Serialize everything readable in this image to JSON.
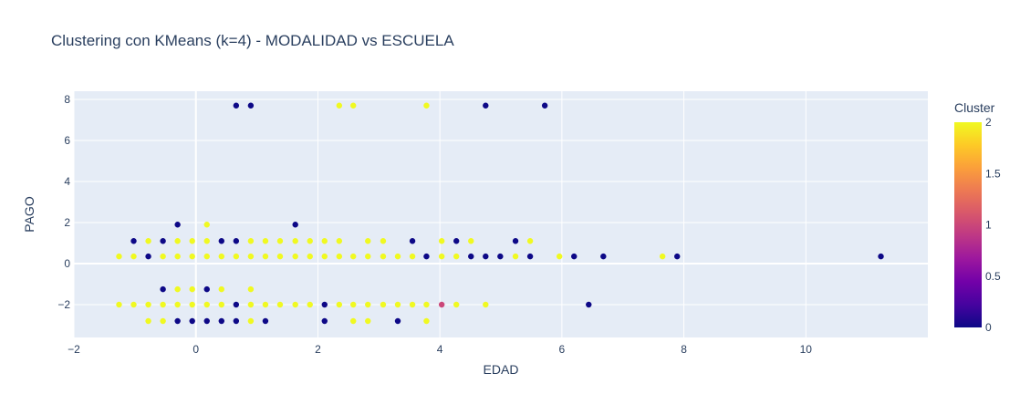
{
  "chart_data": {
    "type": "scatter",
    "title": "Clustering con KMeans (k=4) - MODALIDAD vs ESCUELA",
    "xlabel": "EDAD",
    "ylabel": "PAGO",
    "xlim": [
      -2,
      12
    ],
    "ylim": [
      -3.6,
      8.4
    ],
    "x_ticks": [
      -2,
      0,
      2,
      4,
      6,
      8,
      10
    ],
    "y_ticks": [
      -2,
      0,
      2,
      4,
      6,
      8
    ],
    "grid": true,
    "colorbar": {
      "title": "Cluster",
      "min": 0,
      "max": 2,
      "ticks": [
        0,
        0.5,
        1,
        1.5,
        2
      ],
      "colors": [
        "#0d0887",
        "#46039f",
        "#7201a8",
        "#9c179e",
        "#bd3786",
        "#d8576b",
        "#ed7953",
        "#fb9f3a",
        "#fdca26",
        "#f0f921"
      ]
    },
    "points": [
      {
        "x": 0.66,
        "y": 7.7,
        "c": 0
      },
      {
        "x": 0.9,
        "y": 7.7,
        "c": 0
      },
      {
        "x": 2.35,
        "y": 7.7,
        "c": 2
      },
      {
        "x": 2.58,
        "y": 7.7,
        "c": 2
      },
      {
        "x": 3.78,
        "y": 7.7,
        "c": 2
      },
      {
        "x": 4.75,
        "y": 7.7,
        "c": 0
      },
      {
        "x": 5.72,
        "y": 7.7,
        "c": 0
      },
      {
        "x": -0.3,
        "y": 1.9,
        "c": 0
      },
      {
        "x": 0.18,
        "y": 1.9,
        "c": 2
      },
      {
        "x": 1.63,
        "y": 1.9,
        "c": 0
      },
      {
        "x": -1.02,
        "y": 1.1,
        "c": 0
      },
      {
        "x": -0.78,
        "y": 1.1,
        "c": 2
      },
      {
        "x": -0.54,
        "y": 1.1,
        "c": 0
      },
      {
        "x": -0.3,
        "y": 1.1,
        "c": 2
      },
      {
        "x": -0.06,
        "y": 1.1,
        "c": 2
      },
      {
        "x": 0.18,
        "y": 1.1,
        "c": 2
      },
      {
        "x": 0.42,
        "y": 1.1,
        "c": 0
      },
      {
        "x": 0.66,
        "y": 1.1,
        "c": 0
      },
      {
        "x": 0.9,
        "y": 1.1,
        "c": 2
      },
      {
        "x": 1.14,
        "y": 1.1,
        "c": 2
      },
      {
        "x": 1.38,
        "y": 1.1,
        "c": 2
      },
      {
        "x": 1.63,
        "y": 1.1,
        "c": 2
      },
      {
        "x": 1.87,
        "y": 1.1,
        "c": 2
      },
      {
        "x": 2.11,
        "y": 1.1,
        "c": 2
      },
      {
        "x": 2.35,
        "y": 1.1,
        "c": 2
      },
      {
        "x": 2.82,
        "y": 1.1,
        "c": 2
      },
      {
        "x": 3.07,
        "y": 1.1,
        "c": 2
      },
      {
        "x": 3.55,
        "y": 1.1,
        "c": 0
      },
      {
        "x": 4.03,
        "y": 1.1,
        "c": 2
      },
      {
        "x": 4.27,
        "y": 1.1,
        "c": 0
      },
      {
        "x": 4.51,
        "y": 1.1,
        "c": 2
      },
      {
        "x": 5.24,
        "y": 1.1,
        "c": 0
      },
      {
        "x": 5.48,
        "y": 1.1,
        "c": 2
      },
      {
        "x": -1.26,
        "y": 0.35,
        "c": 2
      },
      {
        "x": -1.02,
        "y": 0.35,
        "c": 2
      },
      {
        "x": -0.78,
        "y": 0.35,
        "c": 0
      },
      {
        "x": -0.54,
        "y": 0.35,
        "c": 2
      },
      {
        "x": -0.3,
        "y": 0.35,
        "c": 2
      },
      {
        "x": -0.06,
        "y": 0.35,
        "c": 2
      },
      {
        "x": 0.18,
        "y": 0.35,
        "c": 2
      },
      {
        "x": 0.42,
        "y": 0.35,
        "c": 2
      },
      {
        "x": 0.66,
        "y": 0.35,
        "c": 2
      },
      {
        "x": 0.9,
        "y": 0.35,
        "c": 2
      },
      {
        "x": 1.14,
        "y": 0.35,
        "c": 2
      },
      {
        "x": 1.38,
        "y": 0.35,
        "c": 2
      },
      {
        "x": 1.63,
        "y": 0.35,
        "c": 2
      },
      {
        "x": 1.87,
        "y": 0.35,
        "c": 2
      },
      {
        "x": 2.11,
        "y": 0.35,
        "c": 2
      },
      {
        "x": 2.35,
        "y": 0.35,
        "c": 2
      },
      {
        "x": 2.58,
        "y": 0.35,
        "c": 2
      },
      {
        "x": 2.82,
        "y": 0.35,
        "c": 2
      },
      {
        "x": 3.07,
        "y": 0.35,
        "c": 2
      },
      {
        "x": 3.31,
        "y": 0.35,
        "c": 2
      },
      {
        "x": 3.55,
        "y": 0.35,
        "c": 2
      },
      {
        "x": 3.78,
        "y": 0.35,
        "c": 0
      },
      {
        "x": 4.03,
        "y": 0.35,
        "c": 2
      },
      {
        "x": 4.27,
        "y": 0.35,
        "c": 2
      },
      {
        "x": 4.51,
        "y": 0.35,
        "c": 0
      },
      {
        "x": 4.75,
        "y": 0.35,
        "c": 0
      },
      {
        "x": 4.99,
        "y": 0.35,
        "c": 0
      },
      {
        "x": 5.24,
        "y": 0.35,
        "c": 2
      },
      {
        "x": 5.48,
        "y": 0.35,
        "c": 0
      },
      {
        "x": 5.96,
        "y": 0.35,
        "c": 2
      },
      {
        "x": 6.2,
        "y": 0.35,
        "c": 0
      },
      {
        "x": 6.68,
        "y": 0.35,
        "c": 0
      },
      {
        "x": 7.65,
        "y": 0.35,
        "c": 2
      },
      {
        "x": 7.89,
        "y": 0.35,
        "c": 0
      },
      {
        "x": 11.23,
        "y": 0.35,
        "c": 0
      },
      {
        "x": -0.54,
        "y": -1.25,
        "c": 0
      },
      {
        "x": -0.3,
        "y": -1.25,
        "c": 2
      },
      {
        "x": -0.06,
        "y": -1.25,
        "c": 2
      },
      {
        "x": 0.18,
        "y": -1.25,
        "c": 0
      },
      {
        "x": 0.42,
        "y": -1.25,
        "c": 2
      },
      {
        "x": 0.9,
        "y": -1.25,
        "c": 2
      },
      {
        "x": -1.26,
        "y": -2.0,
        "c": 2
      },
      {
        "x": -1.02,
        "y": -2.0,
        "c": 2
      },
      {
        "x": -0.78,
        "y": -2.0,
        "c": 2
      },
      {
        "x": -0.54,
        "y": -2.0,
        "c": 2
      },
      {
        "x": -0.3,
        "y": -2.0,
        "c": 2
      },
      {
        "x": -0.06,
        "y": -2.0,
        "c": 2
      },
      {
        "x": 0.18,
        "y": -2.0,
        "c": 2
      },
      {
        "x": 0.42,
        "y": -2.0,
        "c": 2
      },
      {
        "x": 0.66,
        "y": -2.0,
        "c": 0
      },
      {
        "x": 0.9,
        "y": -2.0,
        "c": 2
      },
      {
        "x": 1.14,
        "y": -2.0,
        "c": 2
      },
      {
        "x": 1.38,
        "y": -2.0,
        "c": 2
      },
      {
        "x": 1.63,
        "y": -2.0,
        "c": 2
      },
      {
        "x": 1.87,
        "y": -2.0,
        "c": 2
      },
      {
        "x": 2.11,
        "y": -2.0,
        "c": 0
      },
      {
        "x": 2.35,
        "y": -2.0,
        "c": 2
      },
      {
        "x": 2.58,
        "y": -2.0,
        "c": 2
      },
      {
        "x": 2.82,
        "y": -2.0,
        "c": 2
      },
      {
        "x": 3.07,
        "y": -2.0,
        "c": 2
      },
      {
        "x": 3.31,
        "y": -2.0,
        "c": 2
      },
      {
        "x": 3.55,
        "y": -2.0,
        "c": 2
      },
      {
        "x": 3.78,
        "y": -2.0,
        "c": 2
      },
      {
        "x": 4.03,
        "y": -2.0,
        "c": 1
      },
      {
        "x": 4.27,
        "y": -2.0,
        "c": 2
      },
      {
        "x": 4.75,
        "y": -2.0,
        "c": 2
      },
      {
        "x": 6.44,
        "y": -2.0,
        "c": 0
      },
      {
        "x": -0.78,
        "y": -2.8,
        "c": 2
      },
      {
        "x": -0.54,
        "y": -2.8,
        "c": 2
      },
      {
        "x": -0.3,
        "y": -2.8,
        "c": 0
      },
      {
        "x": -0.06,
        "y": -2.8,
        "c": 0
      },
      {
        "x": 0.18,
        "y": -2.8,
        "c": 0
      },
      {
        "x": 0.42,
        "y": -2.8,
        "c": 0
      },
      {
        "x": 0.66,
        "y": -2.8,
        "c": 0
      },
      {
        "x": 0.9,
        "y": -2.8,
        "c": 2
      },
      {
        "x": 1.14,
        "y": -2.8,
        "c": 0
      },
      {
        "x": 2.11,
        "y": -2.8,
        "c": 0
      },
      {
        "x": 2.58,
        "y": -2.8,
        "c": 2
      },
      {
        "x": 2.82,
        "y": -2.8,
        "c": 2
      },
      {
        "x": 3.31,
        "y": -2.8,
        "c": 0
      },
      {
        "x": 3.78,
        "y": -2.8,
        "c": 2
      }
    ]
  }
}
